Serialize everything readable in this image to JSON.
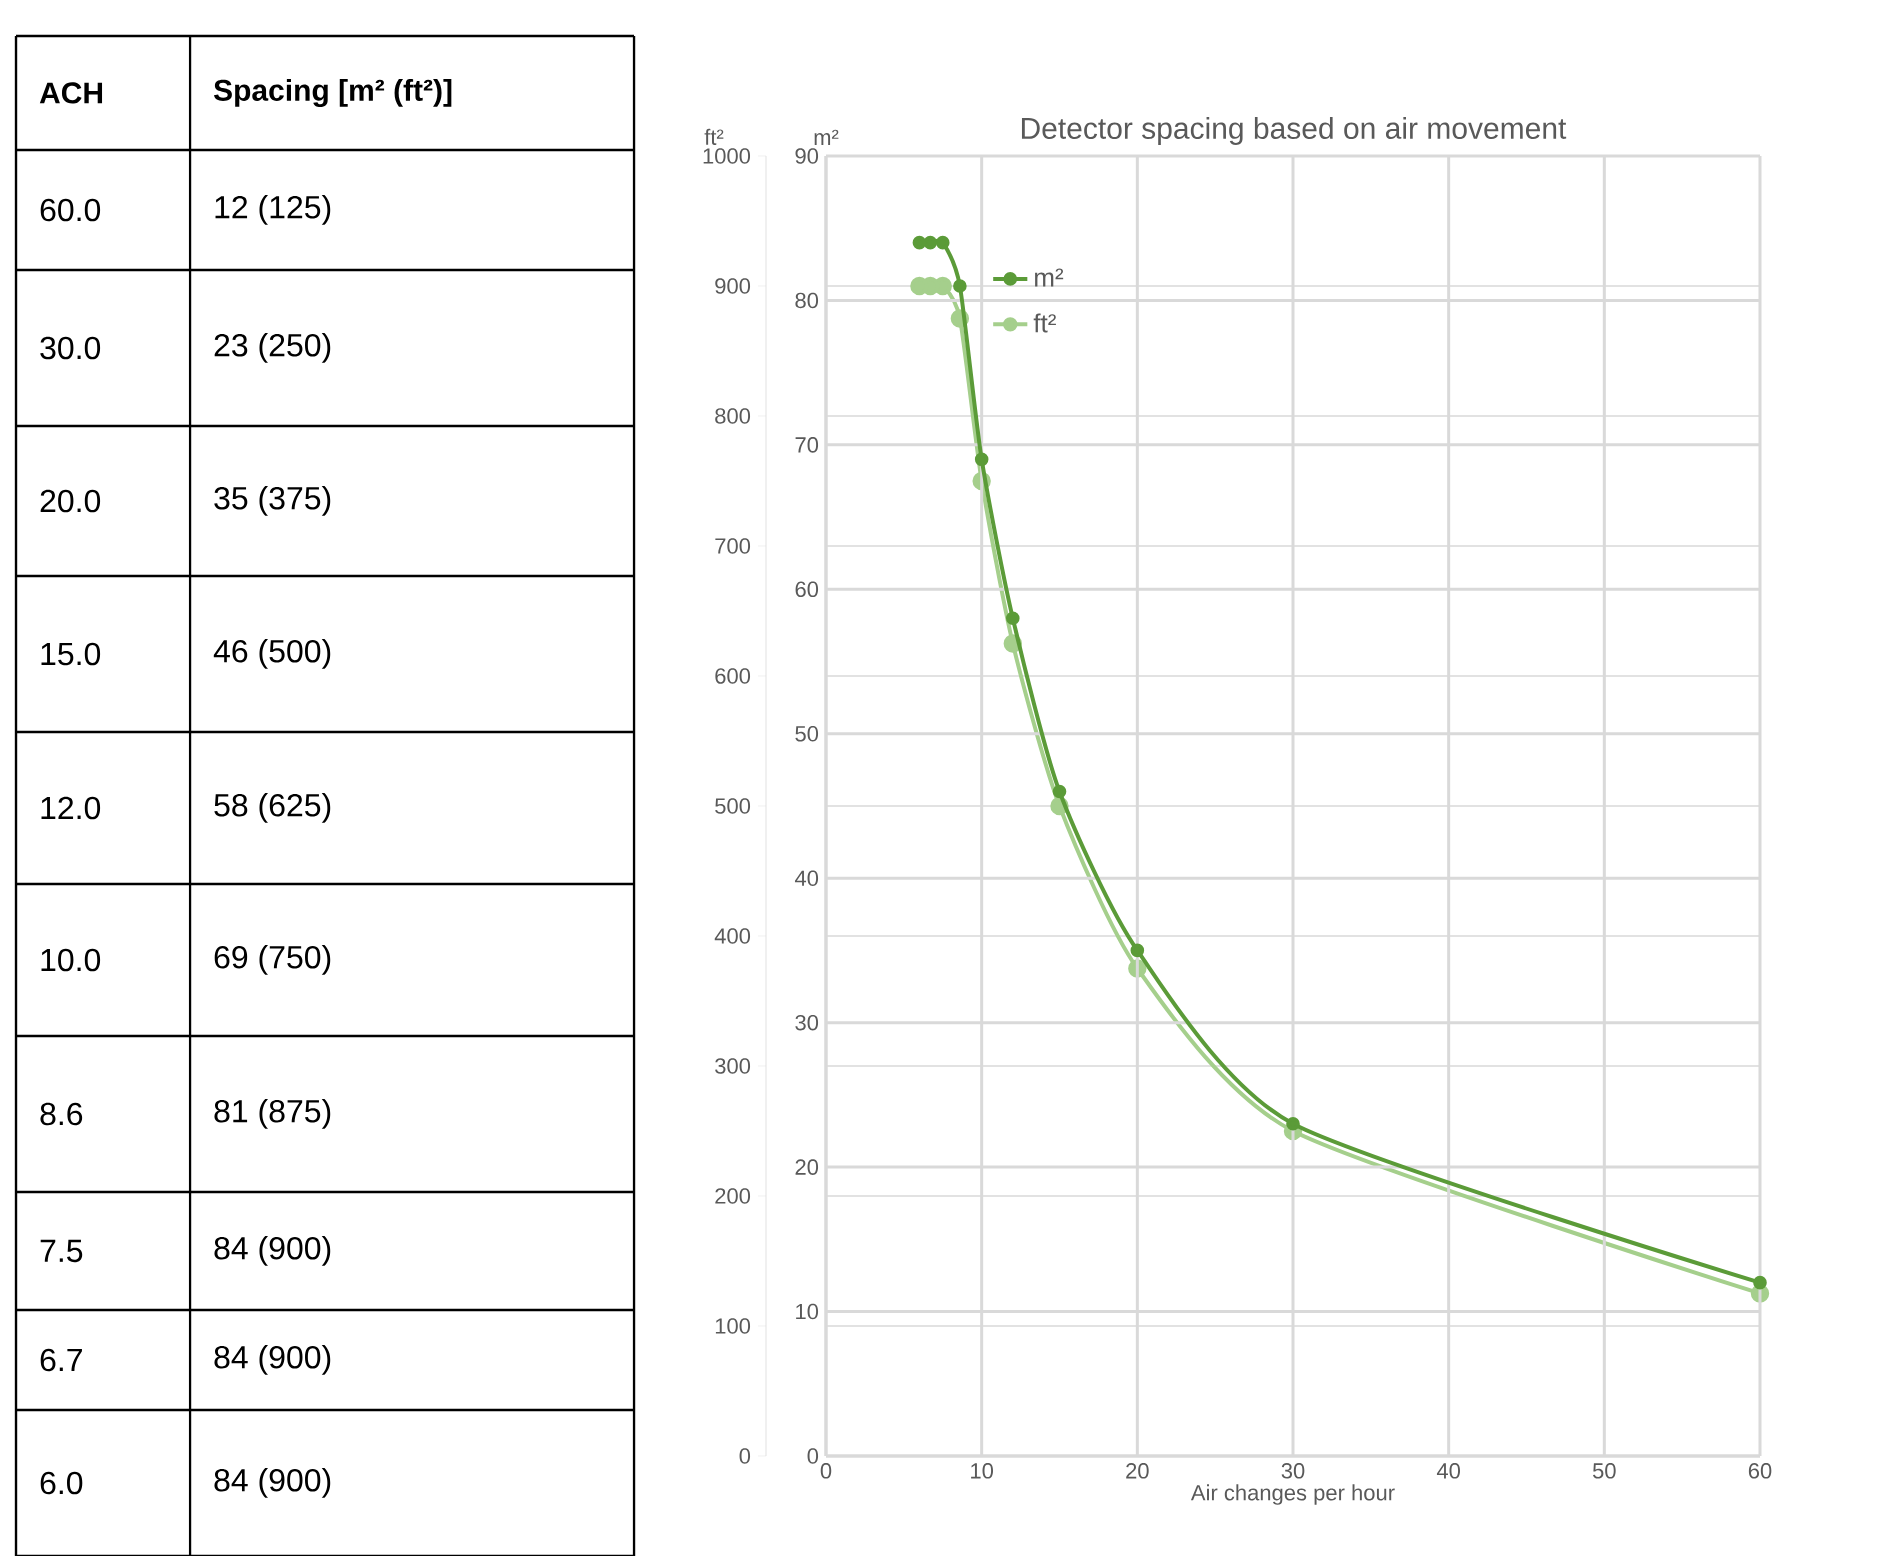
{
  "chart_data": [
    {
      "type": "other",
      "annotations": [
        "ACH",
        "Spacing [m² (ft²)]",
        "60.0",
        "12 (125)",
        "30.0",
        "23 (250)",
        "20.0",
        "35 (375)",
        "15.0",
        "46 (500)",
        "12.0",
        "58 (625)",
        "10.0",
        "69 (750)",
        "8.6",
        "81 (875)",
        "7.5",
        "84 (900)",
        "6.7",
        "84 (900)",
        "6.0",
        "84 (900)"
      ]
    },
    {
      "type": "line",
      "title": "Detector spacing based on air movement",
      "xlabel": "Air changes per hour",
      "ylabel": "m²",
      "y2label": "ft²",
      "x": [
        60,
        30,
        20,
        15,
        12,
        10,
        8.6,
        7.5,
        6.7,
        6.0
      ],
      "series": [
        {
          "name": "m²",
          "color": "#5b9b38",
          "values": [
            12,
            23,
            35,
            46,
            58,
            69,
            81,
            84,
            84,
            84
          ]
        },
        {
          "name": "ft²",
          "color": "#a5cf8c",
          "axis": "y2",
          "values": [
            125,
            250,
            375,
            500,
            625,
            750,
            875,
            900,
            900,
            900
          ]
        }
      ],
      "xlim": [
        0,
        60
      ],
      "xticks": [
        0,
        10,
        20,
        30,
        40,
        50,
        60
      ],
      "ylim": [
        0,
        90
      ],
      "yticks": [
        0,
        10,
        20,
        30,
        40,
        50,
        60,
        70,
        80,
        90
      ],
      "y2lim": [
        0,
        1000
      ],
      "y2ticks": [
        0,
        100,
        200,
        300,
        400,
        500,
        600,
        700,
        800,
        900,
        1000
      ],
      "grid": true,
      "legend": "top left",
      "marker": "circle",
      "line_style": "solid"
    }
  ]
}
